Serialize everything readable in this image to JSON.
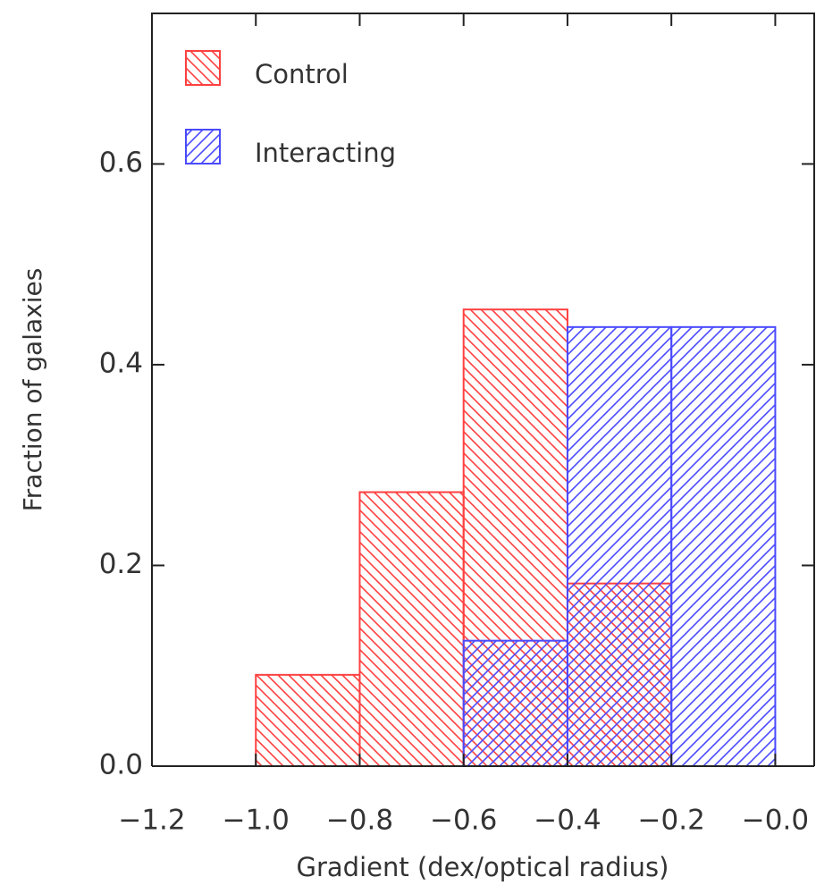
{
  "chart_data": {
    "type": "histogram",
    "xlabel": "Gradient (dex/optical radius)",
    "ylabel": "Fraction of galaxies",
    "bins": [
      -1.0,
      -0.8,
      -0.6,
      -0.4,
      -0.2,
      0.0
    ],
    "series": [
      {
        "name": "Control",
        "color": "#ff4040",
        "hatch": "backslash",
        "values": [
          0.091,
          0.273,
          0.455,
          0.182,
          0
        ]
      },
      {
        "name": "Interacting",
        "color": "#4a4aff",
        "hatch": "slash",
        "values": [
          0,
          0,
          0.125,
          0.4375,
          0.4375
        ]
      }
    ],
    "xlim": [
      -1.2,
      0.075
    ],
    "ylim": [
      0,
      0.75
    ],
    "xticks": [
      {
        "value": -1.2,
        "label": "−1.2"
      },
      {
        "value": -1.0,
        "label": "−1.0"
      },
      {
        "value": -0.8,
        "label": "−0.8"
      },
      {
        "value": -0.6,
        "label": "−0.6"
      },
      {
        "value": -0.4,
        "label": "−0.4"
      },
      {
        "value": -0.2,
        "label": "−0.2"
      },
      {
        "value": 0.0,
        "label": "−0.0"
      }
    ],
    "yticks": [
      {
        "value": 0.0,
        "label": "0.0"
      },
      0.2,
      0.4,
      0.6
    ],
    "legend": "upper left"
  }
}
